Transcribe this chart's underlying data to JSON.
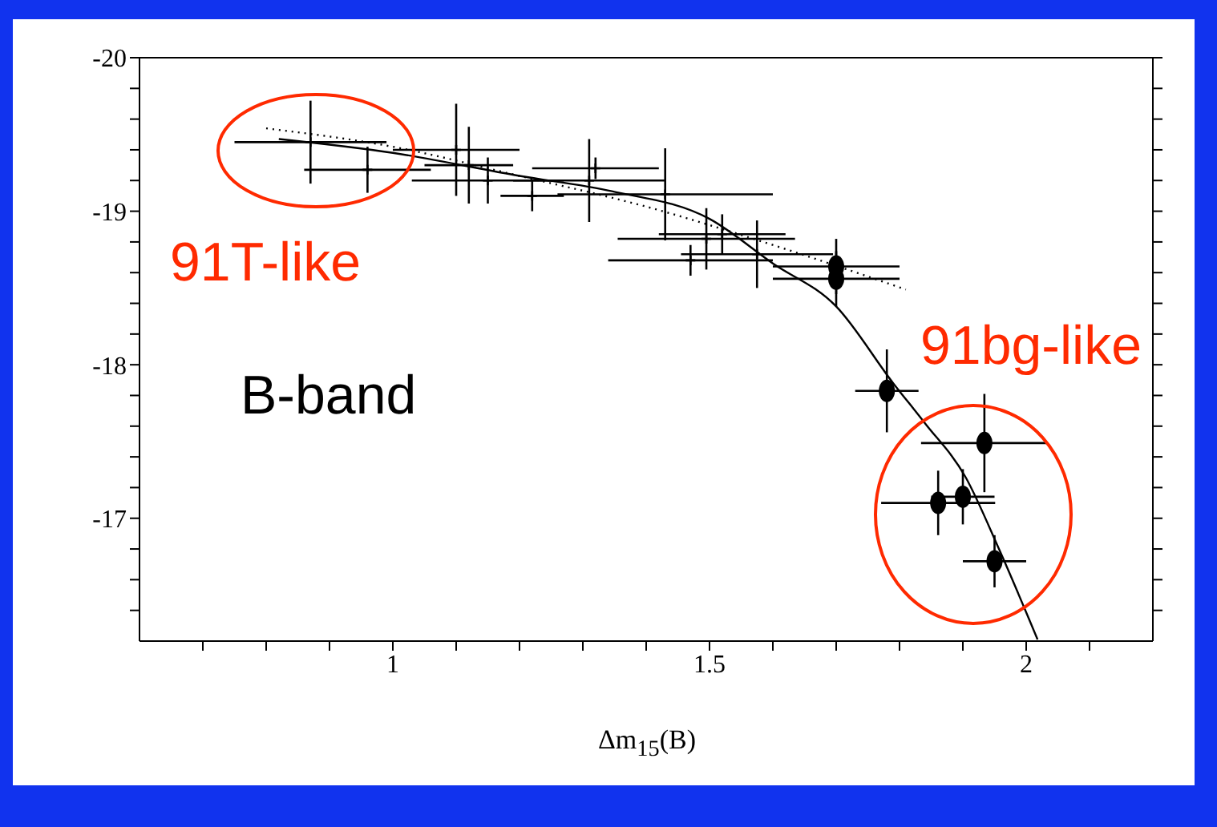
{
  "chart_data": {
    "type": "scatter",
    "xlabel": "Δm$_{15}$(B)",
    "annotations": [
      "91T-like",
      "B-band",
      "91bg-like"
    ],
    "xlim": [
      0.6,
      2.2
    ],
    "xticks": [
      {
        "value": 0.7,
        "label": null
      },
      {
        "value": 0.8,
        "label": null
      },
      {
        "value": 0.9,
        "label": null
      },
      1,
      {
        "value": 1.1,
        "label": null
      },
      {
        "value": 1.2,
        "label": null
      },
      {
        "value": 1.3,
        "label": null
      },
      {
        "value": 1.4,
        "label": null
      },
      1.5,
      {
        "value": 1.6,
        "label": null
      },
      {
        "value": 1.7,
        "label": null
      },
      {
        "value": 1.8,
        "label": null
      },
      {
        "value": 1.9,
        "label": null
      },
      2,
      {
        "value": 2.1,
        "label": null
      }
    ],
    "ylim": [
      -16.2,
      -20
    ],
    "yticks": [
      -20,
      {
        "value": -19.8,
        "label": null
      },
      {
        "value": -19.6,
        "label": null
      },
      {
        "value": -19.4,
        "label": null
      },
      {
        "value": -19.2,
        "label": null
      },
      -19,
      {
        "value": -18.8,
        "label": null
      },
      {
        "value": -18.6,
        "label": null
      },
      {
        "value": -18.4,
        "label": null
      },
      {
        "value": -18.2,
        "label": null
      },
      -18,
      {
        "value": -17.8,
        "label": null
      },
      {
        "value": -17.6,
        "label": null
      },
      {
        "value": -17.4,
        "label": null
      },
      {
        "value": -17.2,
        "label": null
      },
      -17,
      {
        "value": -16.8,
        "label": null
      },
      {
        "value": -16.6,
        "label": null
      },
      {
        "value": -16.4,
        "label": null
      }
    ],
    "series": [
      {
        "marker": "cross",
        "color": "#000000",
        "x": [
          0.87,
          0.96,
          1.1,
          1.12,
          1.15,
          1.22,
          1.31,
          1.32,
          1.43,
          1.47,
          1.495,
          1.52,
          1.575
        ],
        "values": [
          -19.45,
          -19.27,
          -19.4,
          -19.3,
          -19.2,
          -19.1,
          -19.2,
          -19.28,
          -19.11,
          -18.68,
          -18.82,
          -18.85,
          -18.72
        ],
        "errors": [
          0.27,
          0.15,
          0.3,
          0.25,
          0.15,
          0.1,
          0.27,
          0.07,
          0.3,
          0.1,
          0.2,
          0.13,
          0.22
        ],
        "xerrors": [
          0.12,
          0.1,
          0.1,
          0.07,
          0.12,
          0.05,
          0.12,
          0.1,
          0.17,
          0.13,
          0.14,
          0.1,
          0.12
        ]
      },
      {
        "marker": "circle",
        "color": "#000000",
        "x": [
          1.7,
          1.7,
          1.78,
          1.934,
          1.861,
          1.9,
          1.95
        ],
        "values": [
          -18.64,
          -18.56,
          -17.83,
          -17.49,
          -17.1,
          -17.14,
          -16.72
        ],
        "errors": [
          0.18,
          0.18,
          0.27,
          0.32,
          0.21,
          0.18,
          0.17
        ],
        "xerrors": [
          0.1,
          0.1,
          0.05,
          0.1,
          0.09,
          0.05,
          0.05
        ]
      },
      {
        "type": "line",
        "line_style": "solid",
        "color": "#000000",
        "x": [
          0.82,
          1.0,
          1.2,
          1.346,
          1.5,
          1.6,
          1.7,
          1.79,
          1.84,
          1.904,
          1.957,
          2.018
        ],
        "values": [
          -19.47,
          -19.38,
          -19.23,
          -19.13,
          -18.95,
          -18.66,
          -18.38,
          -17.88,
          -17.62,
          -17.27,
          -16.8,
          -16.21
        ]
      },
      {
        "type": "line",
        "line_style": "dotted",
        "color": "#000000",
        "x": [
          0.8,
          1.0,
          1.2,
          1.4,
          1.6,
          1.81
        ],
        "values": [
          -19.54,
          -19.42,
          -19.23,
          -19.03,
          -18.78,
          -18.49
        ]
      }
    ]
  }
}
